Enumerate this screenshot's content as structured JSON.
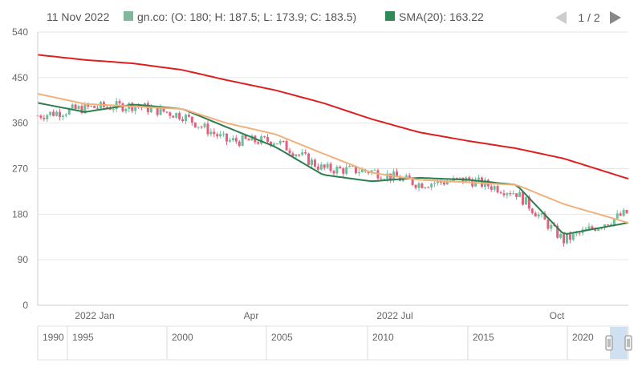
{
  "legend": {
    "date": "11 Nov 2022",
    "series_label": "gn.co: (O: 180; H: 187.5; L: 173.9; C: 183.5)",
    "sma_label": "SMA(20): 163.22",
    "page": "1 / 2"
  },
  "colors": {
    "bull": "#6abf9a",
    "bear": "#e0607e",
    "sma20": "#2e7d4f",
    "sma50": "#f0b27a",
    "sma200": "#dd1f1f",
    "grid": "#e6e6e6",
    "axis_text": "#666666",
    "swatch_ohlc": "#7fb89b",
    "swatch_sma": "#2e8b57"
  },
  "chart_data": {
    "type": "line",
    "title": "",
    "ylim": [
      0,
      540
    ],
    "y_ticks": [
      "0",
      "90",
      "180",
      "270",
      "360",
      "450",
      "540"
    ],
    "x_ticks": [
      "2022 Jan",
      "Apr",
      "2022 Jul",
      "Oct"
    ],
    "grid": "horizontal",
    "legend_position": "top-left",
    "x_range": [
      "2021-11-01",
      "2022-11-11"
    ],
    "last_ohlc": {
      "date": "2022-11-11",
      "open": 180,
      "high": 187.5,
      "low": 173.9,
      "close": 183.5
    },
    "series": [
      {
        "name": "gn.co",
        "kind": "candlestick",
        "x": [
          "2021-11",
          "2021-12",
          "2022-01",
          "2022-02",
          "2022-03",
          "2022-04",
          "2022-05",
          "2022-06",
          "2022-07",
          "2022-08",
          "2022-09",
          "2022-10",
          "2022-11-11"
        ],
        "values": [
          375,
          390,
          395,
          375,
          325,
          325,
          270,
          265,
          240,
          248,
          222,
          128,
          183.5
        ]
      },
      {
        "name": "SMA(20)",
        "kind": "line",
        "x": [
          "2021-11",
          "2021-12",
          "2022-01",
          "2022-02",
          "2022-03",
          "2022-04",
          "2022-05",
          "2022-06",
          "2022-07",
          "2022-08",
          "2022-09",
          "2022-10",
          "2022-11-11"
        ],
        "values": [
          400,
          382,
          397,
          388,
          352,
          313,
          258,
          245,
          252,
          248,
          238,
          140,
          163.22
        ]
      },
      {
        "name": "",
        "kind": "line",
        "x": [
          "2021-11",
          "2021-12",
          "2022-01",
          "2022-02",
          "2022-03",
          "2022-04",
          "2022-05",
          "2022-06",
          "2022-07",
          "2022-08",
          "2022-09",
          "2022-10",
          "2022-11-11"
        ],
        "values": [
          418,
          398,
          393,
          388,
          360,
          338,
          300,
          262,
          248,
          243,
          238,
          200,
          163
        ]
      },
      {
        "name": "",
        "kind": "line",
        "x": [
          "2021-11",
          "2021-12",
          "2022-01",
          "2022-02",
          "2022-03",
          "2022-04",
          "2022-05",
          "2022-06",
          "2022-07",
          "2022-08",
          "2022-09",
          "2022-10",
          "2022-11-11"
        ],
        "values": [
          495,
          485,
          478,
          465,
          445,
          425,
          400,
          368,
          342,
          325,
          310,
          290,
          250
        ]
      }
    ]
  },
  "navigator": {
    "ticks": [
      "1990",
      "1995",
      "2000",
      "2005",
      "2010",
      "2015",
      "2020"
    ]
  }
}
